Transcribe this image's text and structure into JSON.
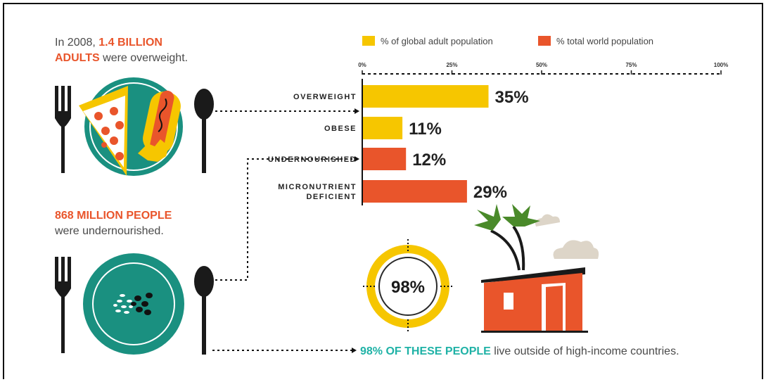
{
  "intro": {
    "prefix": "In 2008, ",
    "highlight1": "1.4 BILLION",
    "highlight2": "ADULTS",
    "suffix": " were overweight."
  },
  "undernourished_note": {
    "highlight": "868 MILLION PEOPLE",
    "text": "were undernourished."
  },
  "footer": {
    "highlight": "98% OF THESE PEOPLE",
    "text": " live outside of high-income countries."
  },
  "donut": {
    "label": "98%",
    "value": 98
  },
  "colors": {
    "yellow": "#f6c600",
    "orange": "#e9552b",
    "teal": "#1a9080",
    "dark": "#1a1a1a",
    "cloud": "#ddd5c8",
    "palm": "#4a8a2a"
  },
  "chart_data": {
    "type": "bar",
    "orientation": "horizontal",
    "legend": [
      {
        "name": "% of global adult population",
        "color": "#f6c600"
      },
      {
        "name": "% total world population",
        "color": "#e9552b"
      }
    ],
    "legend_position": "top",
    "xlim": [
      0,
      100
    ],
    "xticks": [
      "0%",
      "25%",
      "50%",
      "75%",
      "100%"
    ],
    "categories": [
      {
        "label": [
          "OVERWEIGHT"
        ],
        "value": 35,
        "value_label": "35%",
        "series": "% of global adult population"
      },
      {
        "label": [
          "OBESE"
        ],
        "value": 11,
        "value_label": "11%",
        "series": "% of global adult population"
      },
      {
        "label": [
          "UNDERNOURISHED"
        ],
        "value": 12,
        "value_label": "12%",
        "series": "% total world population"
      },
      {
        "label": [
          "MICRONUTRIENT",
          "DEFICIENT"
        ],
        "value": 29,
        "value_label": "29%",
        "series": "% total world population"
      }
    ],
    "grid": false
  }
}
